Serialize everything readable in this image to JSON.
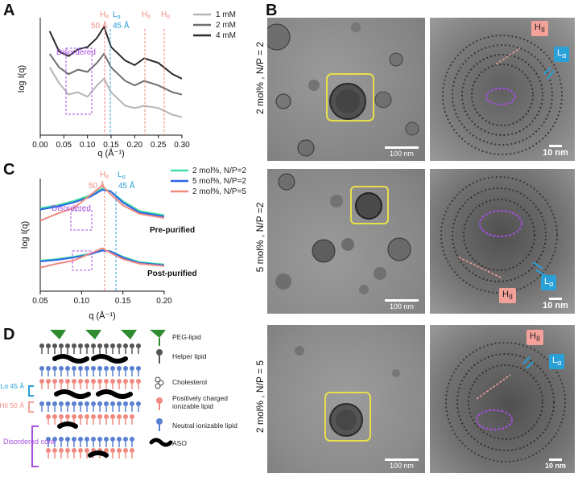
{
  "panels": {
    "A": "A",
    "B": "B",
    "C": "C",
    "D": "D"
  },
  "panelA": {
    "peak_hii_symbol": "H",
    "peak_hii_sub": "II",
    "peak_hii_spacing": "50 Å",
    "peak_la_symbol": "L",
    "peak_la_sub": "α",
    "peak_la_spacing": "45 Å",
    "extra_hii_symbol": "H",
    "extra_hii_sub": "II",
    "disordered_label": "Disordered",
    "ylabel": "log I(q)",
    "xlabel": "q (Å⁻¹)",
    "xticks": [
      "0.00",
      "0.05",
      "0.10",
      "0.15",
      "0.20",
      "0.25",
      "0.30"
    ],
    "legend": [
      "1 mM",
      "2 mM",
      "4 mM"
    ]
  },
  "panelC": {
    "peak_hii_symbol": "H",
    "peak_hii_sub": "II",
    "peak_hii_spacing": "50 Å",
    "peak_la_symbol": "L",
    "peak_la_sub": "α",
    "peak_la_spacing": "45 Å",
    "disordered_label": "Disordered",
    "ylabel": "log I(q)",
    "xlabel": "q (Å⁻¹)",
    "xticks": [
      "0.05",
      "0.10",
      "0.15",
      "0.20"
    ],
    "legend": [
      "2 mol%, N/P=2",
      "5 mol%, N/P=2",
      "2 mol%, N/P=5"
    ],
    "label_pre": "Pre-purified",
    "label_post": "Post-purified"
  },
  "panelB": {
    "rows": [
      "2 mol% , N/P = 2",
      "5 mol% , N/P =2",
      "2 mol% , N/P = 5"
    ],
    "scale_wide": "100 nm",
    "scale_zoom": "10 nm",
    "tag_h_symbol": "H",
    "tag_h_sub": "II",
    "tag_l_symbol": "L",
    "tag_l_sub": "α"
  },
  "panelD": {
    "legend": [
      "PEG-lipid",
      "Helper lipid",
      "Cholesterol",
      "Positively charged ionizable lipid",
      "Neutral ionizable lipid",
      "ASO"
    ],
    "la_label": "Lα 45 Å",
    "hii_label": "HII 50 Å",
    "disordered_label": "Disordered core"
  },
  "chart_data": [
    {
      "type": "line",
      "title": "",
      "xlabel": "q (Å⁻¹)",
      "ylabel": "log I(q)",
      "xlim": [
        0.0,
        0.3
      ],
      "log_y": true,
      "series": [
        {
          "name": "1 mM",
          "x": [
            0.02,
            0.04,
            0.06,
            0.08,
            0.1,
            0.12,
            0.135,
            0.15,
            0.18,
            0.2,
            0.22,
            0.25,
            0.28,
            0.3
          ],
          "y": [
            3.0,
            2.3,
            1.8,
            1.9,
            1.7,
            2.2,
            2.5,
            1.9,
            1.3,
            1.2,
            1.3,
            1.2,
            0.9,
            0.8
          ]
        },
        {
          "name": "2 mM",
          "x": [
            0.02,
            0.04,
            0.06,
            0.08,
            0.1,
            0.12,
            0.135,
            0.15,
            0.18,
            0.2,
            0.22,
            0.25,
            0.28,
            0.3
          ],
          "y": [
            3.6,
            3.0,
            2.7,
            2.9,
            2.8,
            3.2,
            3.6,
            3.0,
            2.4,
            2.2,
            2.4,
            2.2,
            1.9,
            1.8
          ]
        },
        {
          "name": "4 mM",
          "x": [
            0.02,
            0.04,
            0.06,
            0.08,
            0.1,
            0.12,
            0.135,
            0.15,
            0.18,
            0.2,
            0.22,
            0.25,
            0.28,
            0.3
          ],
          "y": [
            4.6,
            3.7,
            3.5,
            3.8,
            3.9,
            4.3,
            4.8,
            3.9,
            3.3,
            3.1,
            3.4,
            3.2,
            2.7,
            2.5
          ]
        }
      ]
    },
    {
      "type": "line",
      "title": "",
      "xlabel": "q (Å⁻¹)",
      "ylabel": "log I(q)",
      "xlim": [
        0.05,
        0.2
      ],
      "log_y": true,
      "series": [
        {
          "name": "2 mol%, N/P=2",
          "x": [
            0.05,
            0.07,
            0.09,
            0.11,
            0.125,
            0.135,
            0.15,
            0.17,
            0.2
          ],
          "y": [
            3.4,
            3.6,
            3.9,
            4.3,
            4.8,
            4.6,
            3.9,
            3.2,
            2.9
          ]
        },
        {
          "name": "5 mol%, N/P=2",
          "x": [
            0.05,
            0.07,
            0.09,
            0.11,
            0.125,
            0.135,
            0.15,
            0.17,
            0.2
          ],
          "y": [
            3.3,
            3.5,
            3.8,
            4.2,
            4.7,
            4.6,
            3.8,
            3.1,
            2.8
          ]
        },
        {
          "name": "2 mol%, N/P=5",
          "x": [
            0.05,
            0.07,
            0.09,
            0.11,
            0.125,
            0.135,
            0.15,
            0.17,
            0.2
          ],
          "y": [
            2.5,
            3.0,
            3.4,
            4.3,
            5.0,
            4.4,
            3.6,
            3.0,
            2.7
          ]
        }
      ]
    }
  ]
}
